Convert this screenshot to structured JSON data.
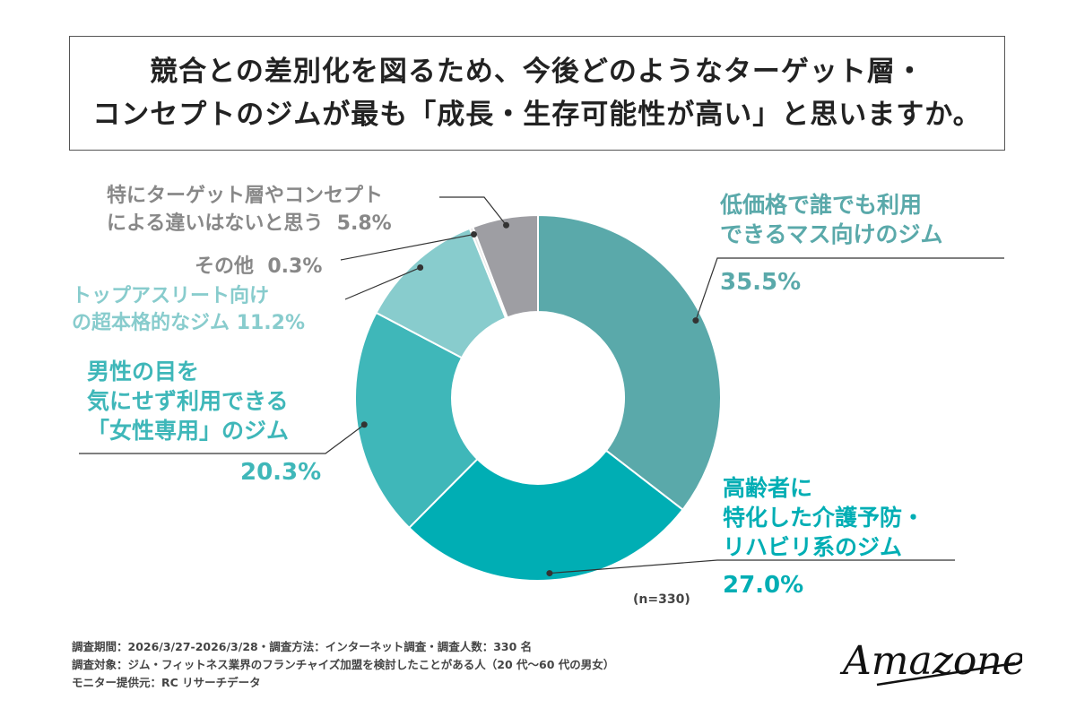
{
  "title": {
    "line1": "競合との差別化を図るため、今後どのようなターゲット層・",
    "line2": "コンセプトのジムが最も「成長・生存可能性が高い」と思いますか。"
  },
  "chart_data": {
    "type": "pie",
    "donut": true,
    "sample_size_label": "(n=330)",
    "slices": [
      {
        "lines": [
          "低価格で誰でも利用",
          "できるマス向けのジム"
        ],
        "value": 35.5,
        "value_label": "35.5%",
        "color": "#5aa9aa"
      },
      {
        "lines": [
          "高齢者に",
          "特化した介護予防・",
          "リハビリ系のジム"
        ],
        "value": 27.0,
        "value_label": "27.0%",
        "color": "#00aeb4"
      },
      {
        "lines": [
          "男性の目を",
          "気にせず利用できる",
          "「女性専用」のジム"
        ],
        "value": 20.3,
        "value_label": "20.3%",
        "color": "#3fb7b9"
      },
      {
        "lines": [
          "トップアスリート向け",
          "の超本格的なジム"
        ],
        "value": 11.2,
        "value_label": "11.2%",
        "color": "#88cccd"
      },
      {
        "lines": [
          "その他"
        ],
        "value": 0.3,
        "value_label": "0.3%",
        "color": "#e6e6e6"
      },
      {
        "lines": [
          "特にターゲット層やコンセプト",
          "による違いはないと思う"
        ],
        "value": 5.8,
        "value_label": "5.8%",
        "color": "#9e9ea3"
      }
    ]
  },
  "footer": {
    "line1": "調査期間：2026/3/27-2026/3/28・調査方法：インターネット調査・調査人数：330 名",
    "line2": "調査対象：ジム・フィットネス業界のフランチャイズ加盟を検討したことがある人（20 代〜60 代の男女）",
    "line3": "モニター提供元：RC リサーチデータ"
  },
  "logo": {
    "text": "Amazones"
  }
}
